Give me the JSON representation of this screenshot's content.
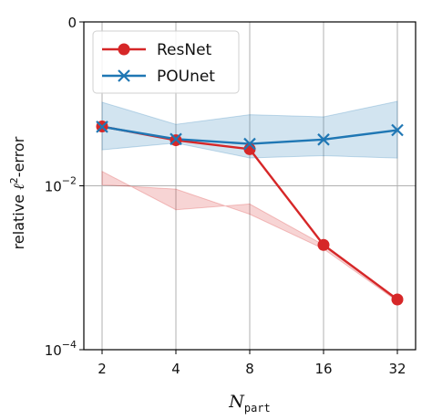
{
  "chart_data": {
    "type": "line",
    "xlabel": "N",
    "xlabel_subscript": "part",
    "ylabel": "relative ℓ²-error",
    "ylabel_main": "relative ",
    "ylabel_ell": "ℓ",
    "ylabel_sup": "2",
    "ylabel_suffix": "-error",
    "x_scale": "log2",
    "y_scale": "log10",
    "x": [
      2,
      4,
      8,
      16,
      32
    ],
    "x_tick_labels": [
      "2",
      "4",
      "8",
      "16",
      "32"
    ],
    "ylim": [
      0.0001,
      1
    ],
    "y_ticks": [
      {
        "value": 1,
        "base": "0",
        "exp": ""
      },
      {
        "value": 0.01,
        "base": "10",
        "exp": "−2"
      },
      {
        "value": 0.0001,
        "base": "10",
        "exp": "−4"
      }
    ],
    "grid": true,
    "legend_position": "top-left",
    "series": [
      {
        "name": "ResNet",
        "color": "#d62728",
        "marker": "circle",
        "values": [
          0.053,
          0.036,
          0.028,
          0.0019,
          0.00041
        ],
        "band_lower": [
          0.0103,
          0.0091,
          0.0045,
          0.0017,
          0.00039
        ],
        "band_upper": [
          0.015,
          0.0051,
          0.006,
          0.0019,
          0.00042
        ]
      },
      {
        "name": "POUnet",
        "color": "#1f77b4",
        "marker": "x",
        "values": [
          0.0525,
          0.0372,
          0.0325,
          0.0367,
          0.0478
        ],
        "band_lower": [
          0.0275,
          0.0333,
          0.0219,
          0.0233,
          0.0218
        ],
        "band_upper": [
          0.1047,
          0.0562,
          0.0738,
          0.0694,
          0.1072
        ]
      }
    ]
  }
}
